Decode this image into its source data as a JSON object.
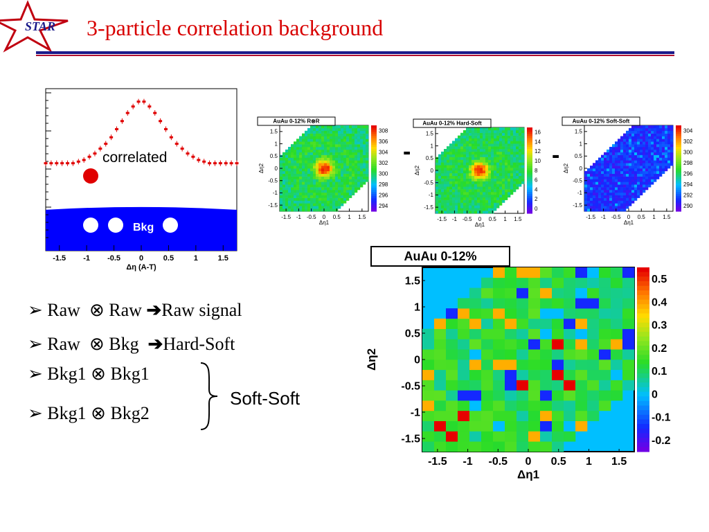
{
  "slide": {
    "title": "3-particle correlation background",
    "logo_text": "STAR",
    "colors": {
      "title": "#d80000",
      "rule_blue": "#1a1a8a",
      "rule_red": "#b01030",
      "accent_blue": "#0000ff",
      "accent_red": "#ff0000"
    }
  },
  "bullets": [
    {
      "a": "Raw",
      "op": "⊗",
      "b": "Raw",
      "arrow": "➔",
      "result": "Raw signal"
    },
    {
      "a": "Raw",
      "op": "⊗",
      "b": "Bkg",
      "arrow": "➔",
      "result": "Hard-Soft"
    },
    {
      "a": "Bkg1",
      "op": "⊗",
      "b": "Bkg1",
      "arrow": "",
      "result": ""
    },
    {
      "a": "Bkg1",
      "op": "⊗",
      "b": "Bkg2",
      "arrow": "",
      "result": ""
    }
  ],
  "bracket_label": "Soft-Soft",
  "minus_sign": "-",
  "chart_data": [
    {
      "type": "scatter",
      "xlabel": "Δη (A-T)",
      "xticks": [
        "-1.5",
        "-1",
        "-0.5",
        "0",
        "0.5",
        "1",
        "1.5"
      ],
      "xlim": [
        -1.75,
        1.75
      ],
      "annotations": [
        "correlated",
        "Bkg"
      ],
      "series": [
        {
          "values_x": [
            -1.75,
            -1.65,
            -1.55,
            -1.45,
            -1.35,
            -1.25,
            -1.15,
            -1.05,
            -0.95,
            -0.85,
            -0.75,
            -0.65,
            -0.55,
            -0.45,
            -0.35,
            -0.25,
            -0.15,
            -0.05,
            0.05,
            0.15,
            0.25,
            0.35,
            0.45,
            0.55,
            0.65,
            0.75,
            0.85,
            0.95,
            1.05,
            1.15,
            1.25,
            1.35,
            1.45,
            1.55,
            1.65,
            1.75
          ],
          "values_y": [
            0.54,
            0.54,
            0.54,
            0.54,
            0.54,
            0.54,
            0.55,
            0.56,
            0.58,
            0.6,
            0.63,
            0.66,
            0.7,
            0.75,
            0.8,
            0.85,
            0.89,
            0.92,
            0.92,
            0.89,
            0.85,
            0.8,
            0.75,
            0.7,
            0.66,
            0.63,
            0.6,
            0.58,
            0.56,
            0.55,
            0.54,
            0.54,
            0.54,
            0.54,
            0.54,
            0.54
          ]
        }
      ],
      "background_level": 0.27
    },
    {
      "type": "heatmap",
      "title": "AuAu 0-12% R⊗R",
      "xlabel": "Δη1",
      "ylabel": "Δη2",
      "ticks": [
        "-1.5",
        "-1",
        "-0.5",
        "0",
        "0.5",
        "1",
        "1.5"
      ],
      "zscale": [
        "308",
        "306",
        "304",
        "302",
        "300",
        "298",
        "296",
        "294"
      ],
      "zlim": [
        294,
        308
      ]
    },
    {
      "type": "heatmap",
      "title": "AuAu 0-12% Hard-Soft",
      "xlabel": "Δη1",
      "ylabel": "Δη2",
      "ticks": [
        "-1.5",
        "-1",
        "-0.5",
        "0",
        "0.5",
        "1",
        "1.5"
      ],
      "zscale": [
        "16",
        "14",
        "12",
        "10",
        "8",
        "6",
        "4",
        "2",
        "0"
      ],
      "zlim": [
        0,
        16
      ]
    },
    {
      "type": "heatmap",
      "title": "AuAu 0-12% Soft-Soft",
      "xlabel": "Δη1",
      "ylabel": "Δη2",
      "ticks": [
        "-1.5",
        "-1",
        "-0.5",
        "0",
        "0.5",
        "1",
        "1.5"
      ],
      "zscale": [
        "304",
        "302",
        "300",
        "298",
        "296",
        "294",
        "292",
        "290"
      ],
      "zlim": [
        290,
        304
      ]
    },
    {
      "type": "heatmap",
      "title": "AuAu 0-12%",
      "xlabel": "Δη1",
      "ylabel": "Δη2",
      "ticks": [
        "-1.5",
        "-1",
        "-0.5",
        "0",
        "0.5",
        "1",
        "1.5"
      ],
      "zscale": [
        "0.5",
        "0.4",
        "0.3",
        "0.2",
        "0.1",
        "0",
        "-0.1",
        "-0.2"
      ],
      "zlim": [
        -0.2,
        0.55
      ]
    }
  ]
}
